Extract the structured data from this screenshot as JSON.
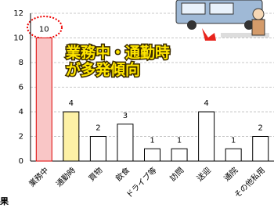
{
  "chart_data": {
    "type": "bar",
    "categories": [
      "業務中",
      "通勤時",
      "買物",
      "飲食",
      "ドライブ等",
      "訪問",
      "送迎",
      "通院",
      "その他私用"
    ],
    "values": [
      10,
      4,
      2,
      3,
      1,
      1,
      4,
      1,
      2
    ],
    "colors": [
      "#f9c6c6",
      "#fdf1a6",
      "#ffffff",
      "#ffffff",
      "#ffffff",
      "#ffffff",
      "#ffffff",
      "#ffffff",
      "#ffffff"
    ],
    "ylim": [
      0,
      12
    ],
    "yticks": [
      0,
      2,
      4,
      6,
      8,
      10,
      12
    ],
    "grid": true,
    "annotation": [
      "業務中・通勤時",
      "が多発傾向"
    ],
    "fragment": "果"
  }
}
